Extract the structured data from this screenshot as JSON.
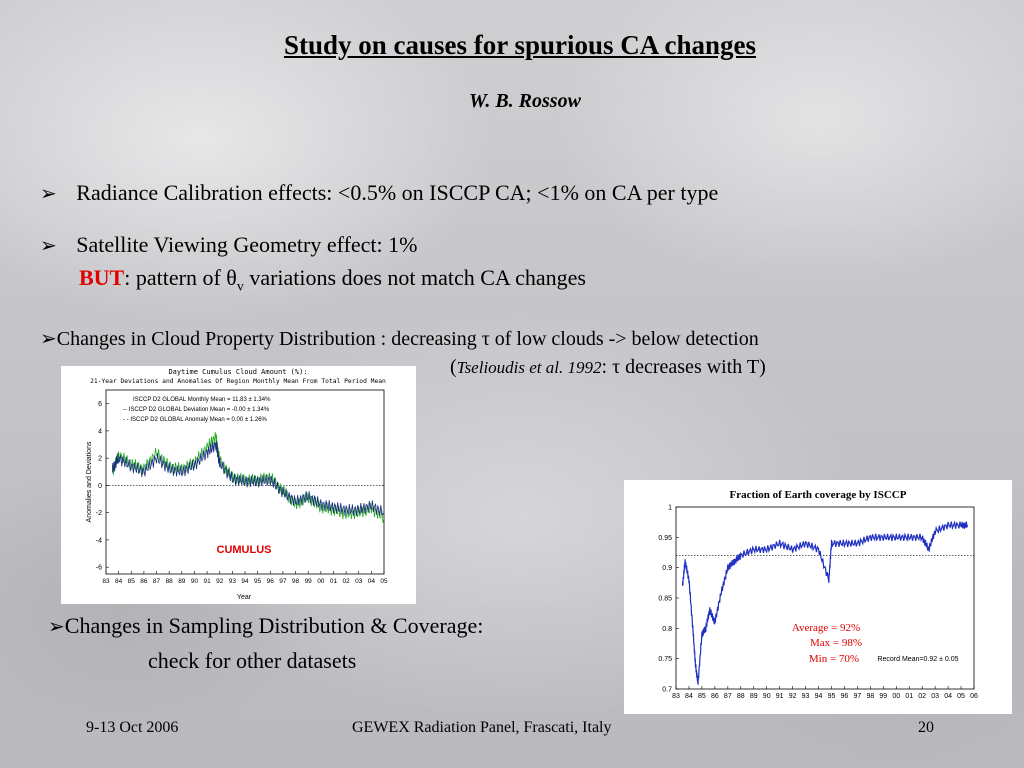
{
  "slide": {
    "title": "Study on causes for spurious CA changes",
    "author": "W. B. Rossow",
    "bullets": [
      {
        "text": "Radiance Calibration effects: <0.5% on ISCCP CA; <1% on CA per type"
      },
      {
        "line1": "Satellite Viewing Geometry effect: 1%",
        "but": "BUT",
        "line2_a": ": pattern of θ",
        "line2_sub": "v",
        "line2_b": " variations does not match CA changes"
      },
      {
        "line1": "Changes in Cloud Property Distribution : decreasing τ of low clouds -> below detection",
        "line2_open": "(",
        "line2_cite": "Tselioudis et al. 1992",
        "line2_rest": ": τ decreases with T)"
      },
      {
        "line1": "Changes in Sampling Distribution & Coverage:",
        "line2": "check for other datasets"
      }
    ],
    "arrow_glyph": "➢",
    "footer": {
      "date": "9-13 Oct 2006",
      "venue": "GEWEX Radiation Panel, Frascati, Italy",
      "page": "20"
    }
  },
  "chart_data": [
    {
      "type": "line",
      "title": "Daytime Cumulus Cloud Amount (%):",
      "subtitle": "21-Year Deviations and Anomalies Of Region Monthly Mean From Total Period Mean",
      "xlabel": "Year",
      "ylabel": "Anomalies and Deviations",
      "annotation": "CUMULUS",
      "ylim": [
        -6.5,
        7
      ],
      "xlim": [
        1983,
        2005
      ],
      "x_ticks": [
        "83",
        "84",
        "85",
        "86",
        "87",
        "88",
        "89",
        "90",
        "91",
        "92",
        "93",
        "94",
        "95",
        "96",
        "97",
        "98",
        "99",
        "00",
        "01",
        "02",
        "03",
        "04",
        "05"
      ],
      "y_ticks": [
        6,
        4,
        2,
        0,
        -2,
        -4,
        -6
      ],
      "legend": [
        "ISCCP D2 GLOBAL Monthly Mean = 11.83 ± 1.34%",
        "-- ISCCP D2 GLOBAL Deviation Mean = -0.00 ± 1.34%",
        "- - ISCCP D2 GLOBAL Anomaly Mean = 0.00 ± 1.26%"
      ],
      "series": [
        {
          "color": "#22aa22",
          "x": [
            1983.5,
            1984,
            1985,
            1986,
            1987,
            1988,
            1989,
            1990,
            1991,
            1991.7,
            1992,
            1993,
            1994,
            1995,
            1996,
            1997,
            1998,
            1999,
            2000,
            2001,
            2002,
            2003,
            2004,
            2005
          ],
          "y": [
            1.0,
            2.2,
            1.6,
            1.2,
            2.4,
            1.4,
            1.2,
            1.7,
            2.8,
            3.6,
            1.8,
            0.6,
            0.4,
            0.4,
            0.6,
            -0.4,
            -1.4,
            -0.9,
            -1.6,
            -1.8,
            -2.1,
            -2.0,
            -1.7,
            -2.4
          ]
        },
        {
          "color": "#1a2a80",
          "x": [
            1983.5,
            1984,
            1985,
            1986,
            1987,
            1988,
            1989,
            1990,
            1991,
            1991.7,
            1992,
            1993,
            1994,
            1995,
            1996,
            1997,
            1998,
            1999,
            2000,
            2001,
            2002,
            2003,
            2004,
            2005
          ],
          "y": [
            1.2,
            2.0,
            1.4,
            1.0,
            2.0,
            1.2,
            1.0,
            1.5,
            2.4,
            3.0,
            1.6,
            0.5,
            0.3,
            0.3,
            0.4,
            -0.5,
            -1.2,
            -0.8,
            -1.4,
            -1.6,
            -1.8,
            -1.8,
            -1.5,
            -2.0
          ]
        }
      ],
      "reference_line": 0
    },
    {
      "type": "line",
      "title": "Fraction of Earth coverage by ISCCP",
      "ylim": [
        0.7,
        1
      ],
      "xlim": [
        1983,
        2006
      ],
      "x_ticks": [
        "83",
        "84",
        "85",
        "86",
        "87",
        "88",
        "89",
        "90",
        "91",
        "92",
        "93",
        "94",
        "95",
        "96",
        "97",
        "98",
        "99",
        "00",
        "01",
        "02",
        "03",
        "04",
        "05",
        "06"
      ],
      "y_ticks": [
        1,
        0.95,
        0.9,
        0.85,
        0.8,
        0.75,
        0.7
      ],
      "stats": [
        "Average = 92%",
        "Max = 98%",
        "Min = 70%"
      ],
      "record_mean": "Record Mean=0.92 ± 0.05",
      "reference_line": 0.92,
      "series": [
        {
          "color": "#1f2fc0",
          "x": [
            1983.5,
            1983.7,
            1984,
            1984.3,
            1984.5,
            1984.7,
            1985,
            1985.3,
            1985.6,
            1986,
            1986.5,
            1987,
            1987.5,
            1988,
            1989,
            1990,
            1991,
            1992,
            1993,
            1994,
            1994.8,
            1995,
            1996,
            1997,
            1998,
            1999,
            2000,
            2001,
            2002,
            2002.5,
            2003,
            2004,
            2005,
            2005.5
          ],
          "y": [
            0.87,
            0.91,
            0.88,
            0.8,
            0.74,
            0.71,
            0.79,
            0.8,
            0.83,
            0.81,
            0.86,
            0.9,
            0.91,
            0.92,
            0.93,
            0.93,
            0.94,
            0.93,
            0.94,
            0.93,
            0.88,
            0.94,
            0.94,
            0.94,
            0.95,
            0.95,
            0.95,
            0.95,
            0.95,
            0.93,
            0.96,
            0.97,
            0.97,
            0.97
          ]
        }
      ]
    }
  ]
}
